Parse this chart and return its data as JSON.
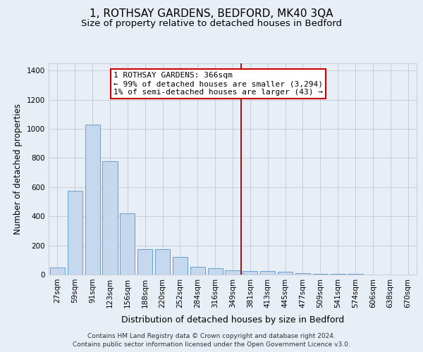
{
  "title": "1, ROTHSAY GARDENS, BEDFORD, MK40 3QA",
  "subtitle": "Size of property relative to detached houses in Bedford",
  "xlabel": "Distribution of detached houses by size in Bedford",
  "ylabel": "Number of detached properties",
  "categories": [
    "27sqm",
    "59sqm",
    "91sqm",
    "123sqm",
    "156sqm",
    "188sqm",
    "220sqm",
    "252sqm",
    "284sqm",
    "316sqm",
    "349sqm",
    "381sqm",
    "413sqm",
    "445sqm",
    "477sqm",
    "509sqm",
    "541sqm",
    "574sqm",
    "606sqm",
    "638sqm",
    "670sqm"
  ],
  "values": [
    50,
    575,
    1030,
    780,
    420,
    175,
    175,
    120,
    55,
    45,
    30,
    25,
    25,
    20,
    10,
    7,
    5,
    3,
    0,
    0,
    0
  ],
  "bar_color": "#c5d8ee",
  "bar_edge_color": "#6a9fcb",
  "vline_x": 10.5,
  "vline_color": "#990000",
  "annotation_text": "1 ROTHSAY GARDENS: 366sqm\n← 99% of detached houses are smaller (3,294)\n1% of semi-detached houses are larger (43) →",
  "annotation_box_facecolor": "#ffffff",
  "annotation_box_edgecolor": "#cc0000",
  "ylim": [
    0,
    1450
  ],
  "yticks": [
    0,
    200,
    400,
    600,
    800,
    1000,
    1200,
    1400
  ],
  "bg_color": "#e8eef5",
  "plot_bg_color": "#e8eef5",
  "grid_color": "#c0c8d8",
  "footer_line1": "Contains HM Land Registry data © Crown copyright and database right 2024.",
  "footer_line2": "Contains public sector information licensed under the Open Government Licence v3.0.",
  "title_fontsize": 11,
  "subtitle_fontsize": 9.5,
  "tick_fontsize": 7.5,
  "ylabel_fontsize": 8.5,
  "xlabel_fontsize": 9,
  "annotation_fontsize": 8,
  "footer_fontsize": 6.5
}
